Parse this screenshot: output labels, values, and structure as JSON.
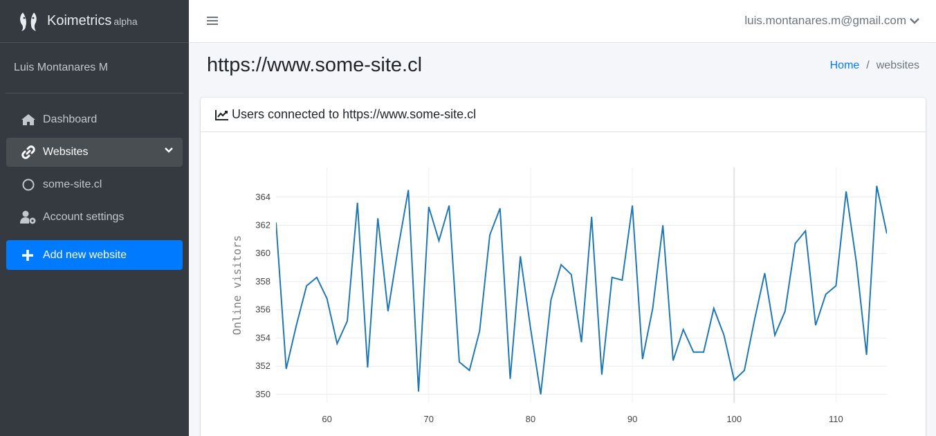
{
  "brand": {
    "name": "Koimetrics",
    "tag": "alpha"
  },
  "user": {
    "name": "Luis Montanares M",
    "email": "luis.montanares.m@gmail.com"
  },
  "sidebar": {
    "items": [
      {
        "label": "Dashboard",
        "icon": "home-icon"
      },
      {
        "label": "Websites",
        "icon": "link-icon",
        "active": true
      },
      {
        "label": "some-site.cl",
        "icon": "circle-icon"
      },
      {
        "label": "Account settings",
        "icon": "user-cog-icon"
      }
    ],
    "add_button": "Add new website"
  },
  "page": {
    "title": "https://www.some-site.cl"
  },
  "breadcrumb": {
    "home": "Home",
    "separator": "/",
    "current": "websites"
  },
  "card": {
    "title": "Users connected to https://www.some-site.cl"
  },
  "colors": {
    "sidebar": "#343a40",
    "accent": "#007bff",
    "line": "#1f77b4"
  },
  "chart_data": {
    "type": "line",
    "title": "",
    "xlabel": "",
    "ylabel": "Online visitors",
    "xlim": [
      55,
      115
    ],
    "ylim": [
      349.4,
      366.1
    ],
    "xticks": [
      60,
      70,
      80,
      90,
      100,
      110
    ],
    "yticks": [
      350,
      352,
      354,
      356,
      358,
      360,
      362,
      364
    ],
    "grid": true,
    "series": [
      {
        "x": [
          55,
          56,
          57,
          58,
          59,
          60,
          61,
          62,
          63,
          64,
          65,
          66,
          67,
          68,
          69,
          70,
          71,
          72,
          73,
          74,
          75,
          76,
          77,
          78,
          79,
          80,
          81,
          82,
          83,
          84,
          85,
          86,
          87,
          88,
          89,
          90,
          91,
          92,
          93,
          94,
          95,
          96,
          97,
          98,
          99,
          100,
          101,
          102,
          103,
          104,
          105,
          106,
          107,
          108,
          109,
          110,
          111,
          112,
          113,
          114,
          115
        ],
        "y": [
          362.2,
          351.8,
          354.9,
          357.7,
          358.3,
          356.8,
          353.6,
          355.2,
          363.6,
          351.9,
          362.5,
          355.9,
          360.4,
          364.5,
          350.2,
          363.3,
          360.9,
          363.4,
          352.3,
          351.7,
          354.5,
          361.3,
          363.2,
          351.1,
          359.8,
          354.7,
          350.0,
          356.7,
          359.2,
          358.5,
          353.7,
          362.6,
          351.4,
          358.3,
          358.1,
          363.4,
          352.5,
          356.1,
          362.0,
          352.4,
          354.6,
          353.0,
          353.0,
          356.1,
          354.2,
          351.0,
          351.7,
          355.3,
          358.6,
          354.2,
          355.9,
          360.7,
          361.6,
          354.9,
          357.1,
          357.7,
          364.4,
          359.4,
          352.8,
          364.8,
          361.4
        ]
      }
    ]
  }
}
